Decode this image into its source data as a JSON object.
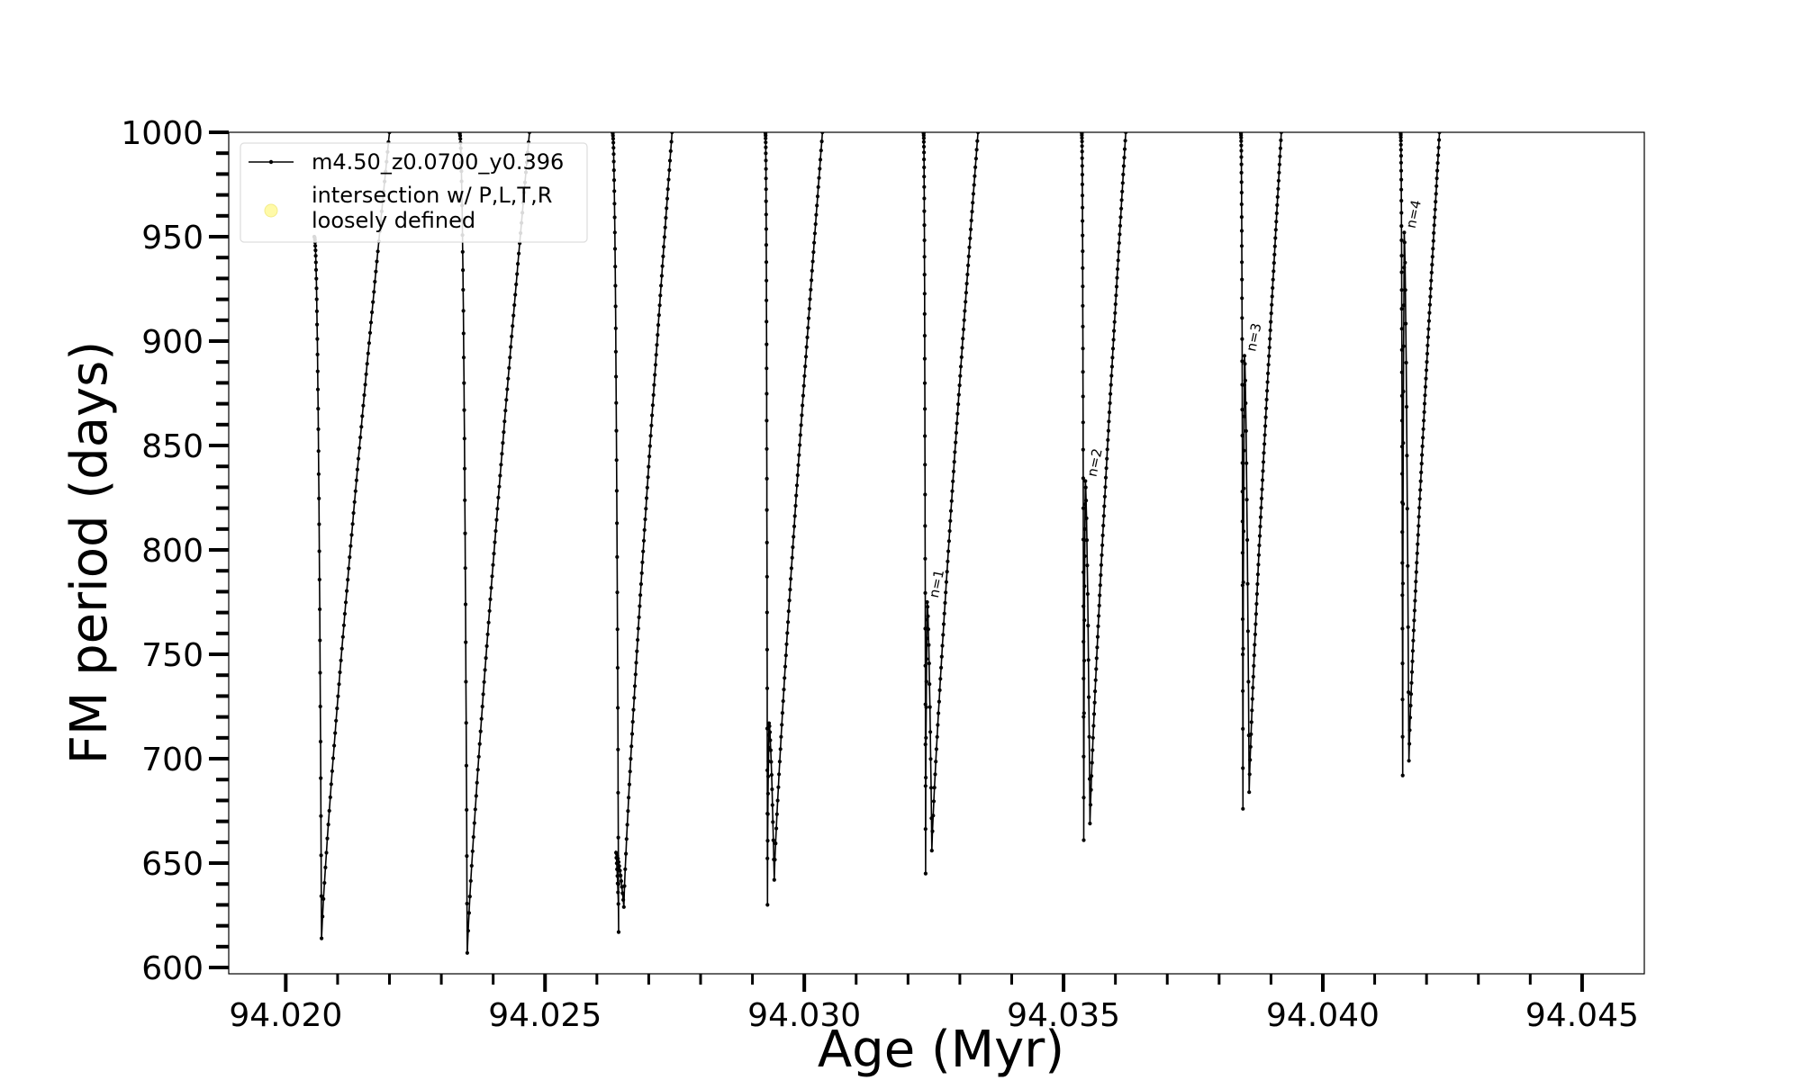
{
  "chart_data": {
    "type": "line",
    "xlabel": "Age (Myr)",
    "ylabel": "FM period (days)",
    "xlim": [
      94.0189,
      94.0462
    ],
    "ylim": [
      597,
      1000
    ],
    "x_ticks": [
      94.02,
      94.025,
      94.03,
      94.035,
      94.04,
      94.045
    ],
    "x_tick_labels": [
      "94.020",
      "94.025",
      "94.030",
      "94.035",
      "94.040",
      "94.045"
    ],
    "y_ticks": [
      600,
      650,
      700,
      750,
      800,
      850,
      900,
      950,
      1000
    ],
    "y_tick_labels": [
      "600",
      "650",
      "700",
      "750",
      "800",
      "850",
      "900",
      "950",
      "1000"
    ],
    "legend": {
      "placement": "upper left",
      "entries": [
        {
          "label": "m4.50_z0.0700_y0.396",
          "style": "line-with-dots",
          "color": "#000000"
        },
        {
          "label_lines": [
            "intersection w/ P,L,T,R",
            "loosely defined"
          ],
          "style": "marker",
          "color": "#fffaa8"
        }
      ]
    },
    "series": [
      {
        "name": "m4.50_z0.0700_y0.396",
        "color": "#000000",
        "cycles": [
          {
            "peak_age": 94.02055,
            "min_age": 94.02069,
            "min_period": 614,
            "rise_end_age": 94.022,
            "peak_period": 950
          },
          {
            "peak_age": 94.02335,
            "min_age": 94.0235,
            "min_period": 607,
            "rise_end_age": 94.0247
          },
          {
            "peak_age": 94.0263,
            "spike_age": 94.02637,
            "spike_period": 655,
            "min_age": 94.02642,
            "min_period": 617,
            "min2_age": 94.02652,
            "min2_period": 629,
            "rise_end_age": 94.02745
          },
          {
            "peak_age": 94.02925,
            "spike_age": 94.02932,
            "spike_period": 717,
            "min_age": 94.02929,
            "min_period": 630,
            "min2_age": 94.02942,
            "min2_period": 642,
            "rise_end_age": 94.03035
          },
          {
            "peak_age": 94.0323,
            "spike_age": 94.03237,
            "spike_period": 775,
            "min_age": 94.03234,
            "min_period": 645,
            "min2_age": 94.03246,
            "min2_period": 656,
            "rise_end_age": 94.03335,
            "label": "n=1"
          },
          {
            "peak_age": 94.03535,
            "spike_age": 94.03542,
            "spike_period": 833,
            "min_age": 94.03539,
            "min_period": 661,
            "min2_age": 94.03551,
            "min2_period": 669,
            "rise_end_age": 94.0362,
            "label": "n=2"
          },
          {
            "peak_age": 94.03842,
            "spike_age": 94.03849,
            "spike_period": 893,
            "min_age": 94.03846,
            "min_period": 676,
            "min2_age": 94.03858,
            "min2_period": 684,
            "rise_end_age": 94.0392,
            "label": "n=3"
          },
          {
            "peak_age": 94.0415,
            "spike_age": 94.04157,
            "spike_period": 952,
            "min_age": 94.04154,
            "min_period": 692,
            "min2_age": 94.04166,
            "min2_period": 699,
            "rise_end_age": 94.04225,
            "label": "n=4"
          }
        ]
      }
    ],
    "grid": false
  }
}
